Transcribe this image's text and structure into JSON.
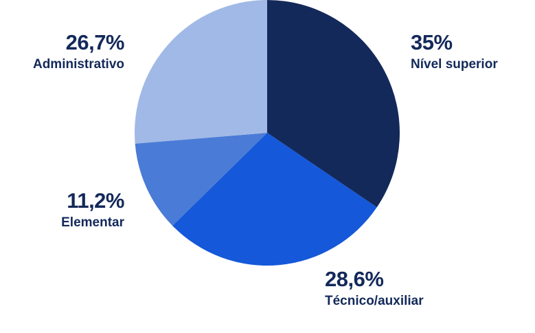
{
  "chart_data": {
    "type": "pie",
    "categories": [
      "Nível superior",
      "Técnico/auxiliar",
      "Elementar",
      "Administrativo"
    ],
    "values": [
      35,
      28.6,
      11.2,
      26.7
    ],
    "value_labels": [
      "35%",
      "28,6%",
      "11,2%",
      "26,7%"
    ],
    "colors": [
      "#13295a",
      "#1558d9",
      "#4a7bd6",
      "#a1b9e6"
    ],
    "start_angle_deg": 0,
    "direction": "clockwise",
    "legend": "none"
  }
}
